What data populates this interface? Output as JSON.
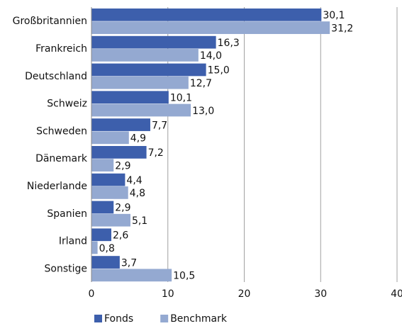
{
  "chart_data": {
    "type": "hbar",
    "categories": [
      "Großbritannien",
      "Frankreich",
      "Deutschland",
      "Schweiz",
      "Schweden",
      "Dänemark",
      "Niederlande",
      "Spanien",
      "Irland",
      "Sonstige"
    ],
    "series": [
      {
        "name": "Fonds",
        "color": "#3d5fac",
        "values": [
          30.1,
          16.3,
          15.0,
          10.1,
          7.7,
          7.2,
          4.4,
          2.9,
          2.6,
          3.7
        ],
        "value_labels": [
          "30,1",
          "16,3",
          "15,0",
          "10,1",
          "7,7",
          "7,2",
          "4,4",
          "2,9",
          "2,6",
          "3,7"
        ]
      },
      {
        "name": "Benchmark",
        "color": "#94a9d1",
        "values": [
          31.2,
          14.0,
          12.7,
          13.0,
          4.9,
          2.9,
          4.8,
          5.1,
          0.8,
          10.5
        ],
        "value_labels": [
          "31,2",
          "14,0",
          "12,7",
          "13,0",
          "4,9",
          "2,9",
          "4,8",
          "5,1",
          "0,8",
          "10,5"
        ]
      }
    ],
    "xlim": [
      0,
      40
    ],
    "xticks": [
      0,
      10,
      20,
      30,
      40
    ],
    "grid": true,
    "legend": "bottom"
  }
}
